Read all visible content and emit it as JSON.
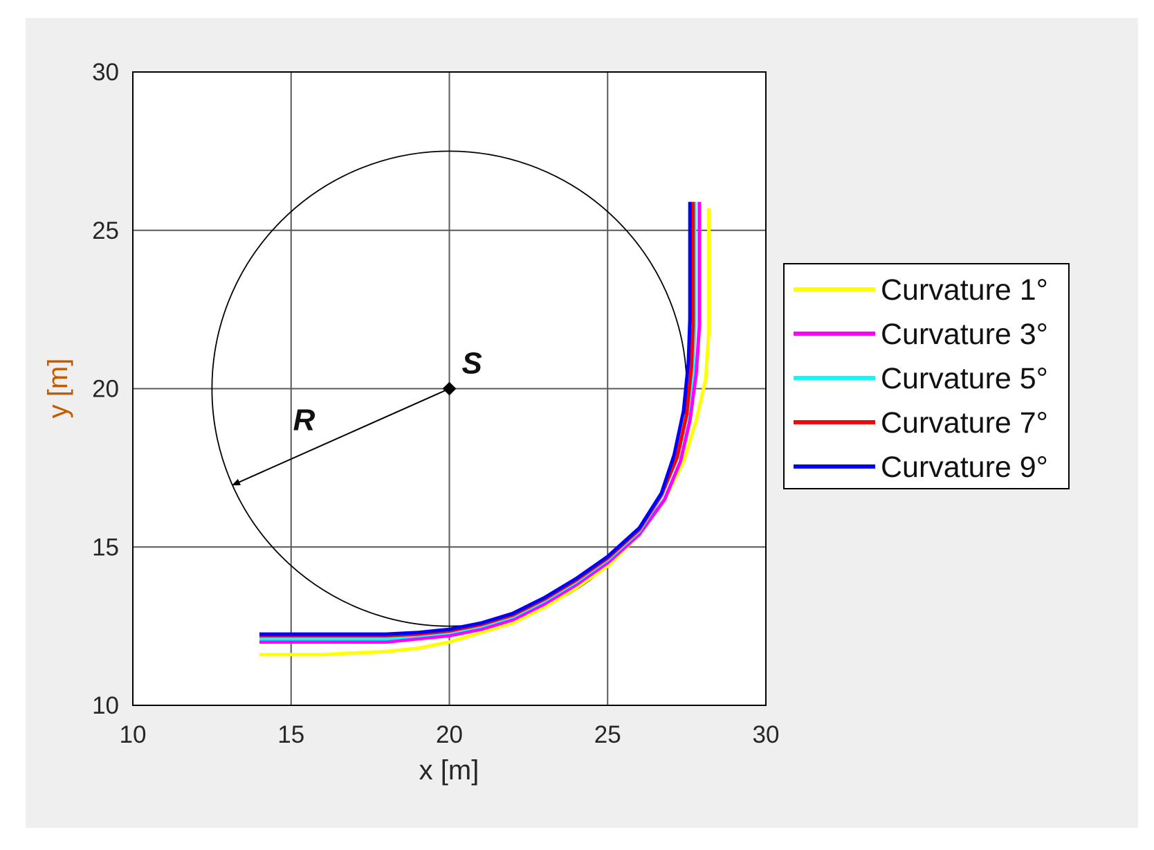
{
  "colors": {
    "figure_bg": "#efefef",
    "axes_bg": "#ffffff",
    "grid": "#595959",
    "ylabel": "#c25b00",
    "xlabel": "#262626"
  },
  "chart_data": {
    "type": "line",
    "xlabel": "x [m]",
    "ylabel": "y [m]",
    "xlim": [
      10,
      30
    ],
    "ylim": [
      10,
      30
    ],
    "xticks": [
      10,
      15,
      20,
      25,
      30
    ],
    "yticks": [
      10,
      15,
      20,
      25,
      30
    ],
    "xtick_labels": [
      "10",
      "15",
      "20",
      "25",
      "30"
    ],
    "ytick_labels": [
      "10",
      "15",
      "20",
      "25",
      "30"
    ],
    "grid": true,
    "legend_position": "right, outside",
    "circle": {
      "center": [
        20,
        20
      ],
      "radius": 7.5
    },
    "center_label": "S",
    "radius_label": "R",
    "series": [
      {
        "name": "Curvature 1°",
        "color": "#ffff00",
        "x": [
          14,
          16,
          18,
          19,
          20,
          21,
          22,
          23,
          24,
          25,
          26,
          26.8,
          27.4,
          27.8,
          28.1,
          28.2,
          28.2,
          28.2
        ],
        "y": [
          11.6,
          11.6,
          11.7,
          11.8,
          12.0,
          12.3,
          12.6,
          13.1,
          13.7,
          14.4,
          15.4,
          16.5,
          17.7,
          19.0,
          20.3,
          21.8,
          23.8,
          25.7
        ]
      },
      {
        "name": "Curvature 3°",
        "color": "#ff00ff",
        "x": [
          14,
          16,
          18,
          19,
          20,
          21,
          22,
          23,
          24,
          25,
          26,
          26.8,
          27.3,
          27.6,
          27.8,
          27.9,
          27.9,
          27.9
        ],
        "y": [
          12.0,
          12.0,
          12.0,
          12.1,
          12.2,
          12.4,
          12.7,
          13.2,
          13.8,
          14.5,
          15.4,
          16.5,
          17.7,
          19.0,
          20.5,
          22.0,
          24.0,
          25.9
        ]
      },
      {
        "name": "Curvature 5°",
        "color": "#00ffff",
        "x": [
          14,
          16,
          18,
          19,
          20,
          21,
          22,
          23,
          24,
          25,
          26,
          26.7,
          27.2,
          27.5,
          27.7,
          27.75,
          27.75,
          27.75
        ],
        "y": [
          12.1,
          12.1,
          12.1,
          12.2,
          12.3,
          12.5,
          12.8,
          13.3,
          13.9,
          14.6,
          15.5,
          16.6,
          17.8,
          19.1,
          20.6,
          22.0,
          24.0,
          25.9
        ]
      },
      {
        "name": "Curvature 7°",
        "color": "#ff0000",
        "x": [
          14,
          16,
          18,
          19,
          20,
          21,
          22,
          23,
          24,
          25,
          26,
          26.7,
          27.2,
          27.5,
          27.65,
          27.7,
          27.7,
          27.7
        ],
        "y": [
          12.2,
          12.2,
          12.2,
          12.25,
          12.35,
          12.55,
          12.85,
          13.35,
          13.95,
          14.65,
          15.55,
          16.65,
          17.85,
          19.2,
          20.7,
          22.0,
          24.0,
          25.9
        ]
      },
      {
        "name": "Curvature 9°",
        "color": "#0000ff",
        "x": [
          14,
          16,
          18,
          19,
          20,
          21,
          22,
          23,
          24,
          25,
          26,
          26.7,
          27.1,
          27.4,
          27.55,
          27.6,
          27.6,
          27.6
        ],
        "y": [
          12.25,
          12.25,
          12.25,
          12.3,
          12.4,
          12.6,
          12.9,
          13.4,
          14.0,
          14.7,
          15.6,
          16.7,
          17.9,
          19.3,
          20.8,
          22.2,
          24.0,
          25.9
        ]
      }
    ]
  }
}
